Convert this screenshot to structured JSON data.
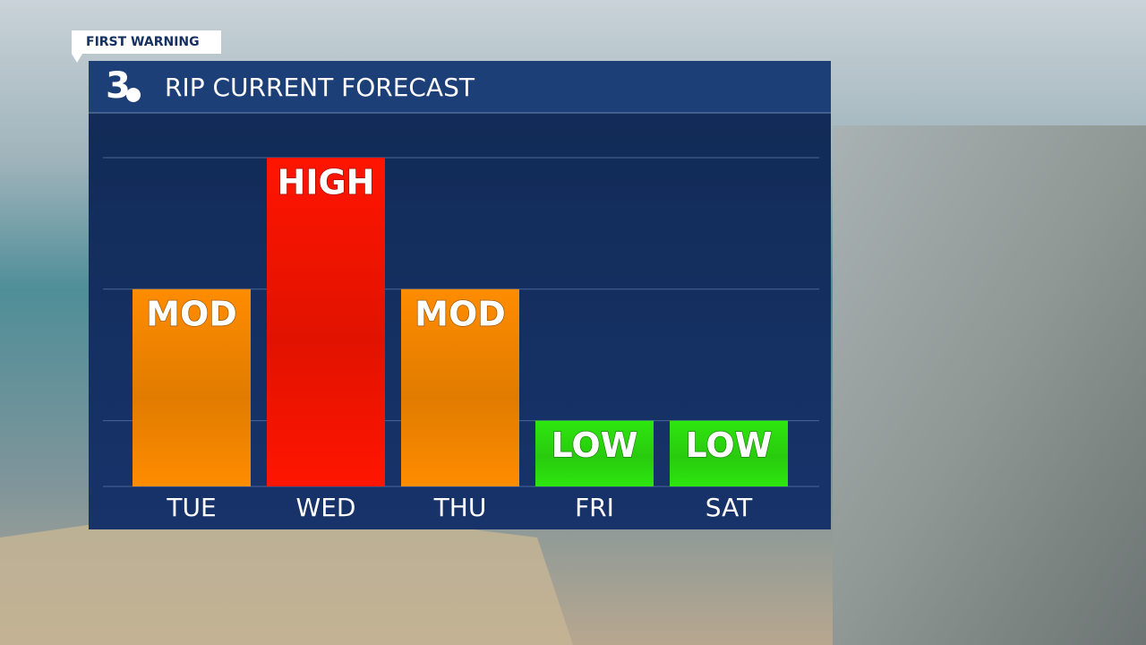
{
  "tag": "FIRST WARNING",
  "logo": "3",
  "chart_data": {
    "type": "bar",
    "title": "RIP CURRENT FORECAST",
    "categories": [
      "TUE",
      "WED",
      "THU",
      "FRI",
      "SAT"
    ],
    "values": [
      2,
      3,
      2,
      1,
      1
    ],
    "value_labels": [
      "MOD",
      "HIGH",
      "MOD",
      "LOW",
      "LOW"
    ],
    "colors": [
      "#ff8c00",
      "#ff1500",
      "#ff8c00",
      "#2ee60f",
      "#2ee60f"
    ],
    "ylim": [
      0.5,
      3
    ],
    "yticks": [
      1,
      2,
      3
    ],
    "grid": true
  }
}
